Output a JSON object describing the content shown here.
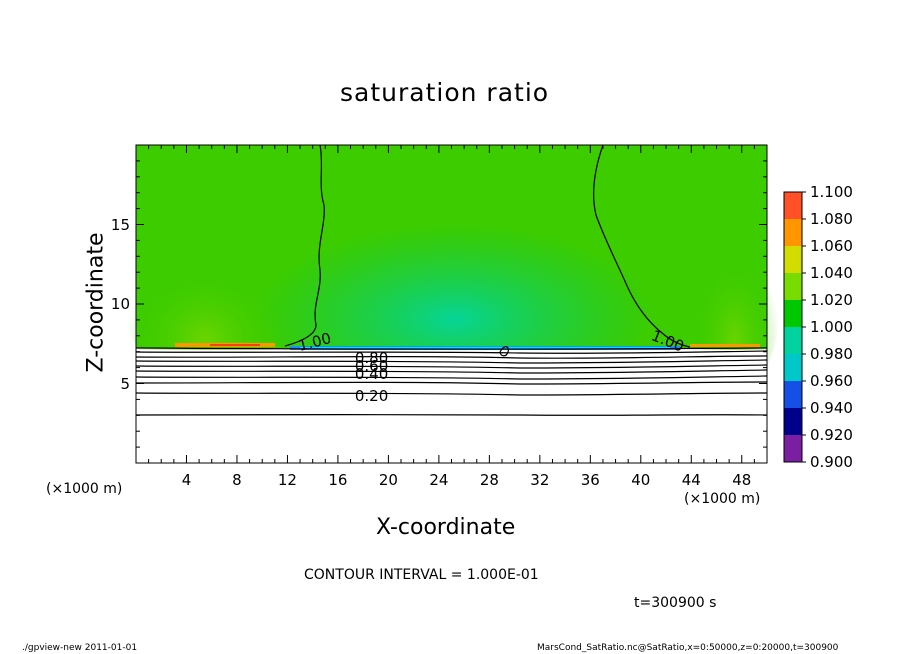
{
  "chart_data": {
    "type": "heatmap",
    "title": "saturation ratio",
    "xlabel": "X-coordinate",
    "ylabel": "Z-coordinate",
    "x_unit": "(×1000 m)",
    "z_unit": "(×1000 m)",
    "xlim": [
      0,
      50
    ],
    "ylim": [
      0,
      20
    ],
    "x_ticks": [
      4,
      8,
      12,
      16,
      20,
      24,
      28,
      32,
      36,
      40,
      44,
      48
    ],
    "y_ticks": [
      5,
      10,
      15
    ],
    "colorbar": {
      "levels": [
        0.9,
        0.92,
        0.94,
        0.96,
        0.98,
        1.0,
        1.02,
        1.04,
        1.06,
        1.08,
        1.1
      ],
      "labels": [
        "0.900",
        "0.920",
        "0.940",
        "0.960",
        "0.980",
        "1.000",
        "1.020",
        "1.040",
        "1.060",
        "1.080",
        "1.100"
      ],
      "colors": [
        "#7a1fa2",
        "#00008b",
        "#1450e6",
        "#00c8c8",
        "#00d2a0",
        "#00c800",
        "#78dc00",
        "#d2dc00",
        "#ff9600",
        "#ff5028",
        "#ffa0a0"
      ]
    },
    "contour_labels": [
      {
        "text": "1.00",
        "x": 13,
        "z": 7.6
      },
      {
        "text": "1.00",
        "x": 41,
        "z": 7.7
      },
      {
        "text": "0.80",
        "x": 17.5,
        "z": 6.6
      },
      {
        "text": "0.60",
        "x": 17.5,
        "z": 6.1
      },
      {
        "text": "0.40",
        "x": 17.5,
        "z": 5.6
      },
      {
        "text": "0.20",
        "x": 17.5,
        "z": 4.2
      }
    ]
  },
  "contour_interval": "CONTOUR INTERVAL = 1.000E-01",
  "time_label": "t=300900 s",
  "footer_left": "./gpview-new   2011-01-01",
  "footer_right": "MarsCond_SatRatio.nc@SatRatio,x=0:50000,z=0:20000,t=300900"
}
